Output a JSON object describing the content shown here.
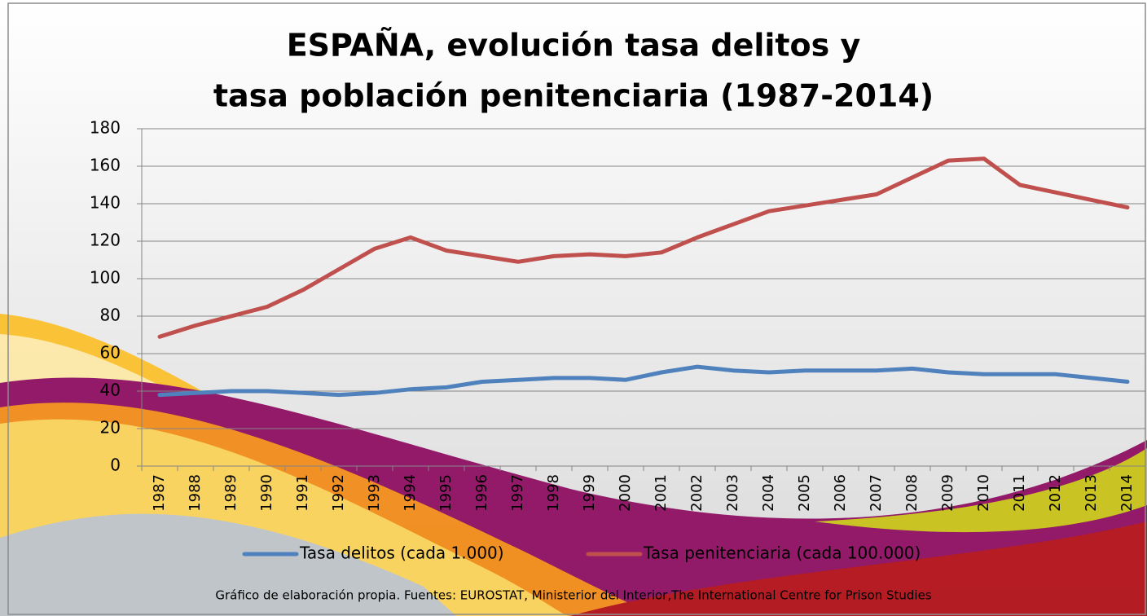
{
  "chart_data": {
    "type": "line",
    "title": [
      "ESPAÑA, evolución tasa delitos y",
      "tasa población penitenciaria (1987-2014)"
    ],
    "categories": [
      "1987",
      "1988",
      "1989",
      "1990",
      "1991",
      "1992",
      "1993",
      "1994",
      "1995",
      "1996",
      "1997",
      "1998",
      "1999",
      "2000",
      "2001",
      "2002",
      "2003",
      "2004",
      "2005",
      "2006",
      "2007",
      "2008",
      "2009",
      "2010",
      "2011",
      "2012",
      "2013",
      "2014"
    ],
    "series": [
      {
        "name": "Tasa delitos (cada 1.000)",
        "color": "#4f81bd",
        "values": [
          38,
          39,
          40,
          40,
          39,
          38,
          39,
          41,
          42,
          45,
          46,
          47,
          47,
          46,
          50,
          53,
          51,
          50,
          51,
          51,
          51,
          52,
          50,
          49,
          49,
          49,
          47,
          45
        ]
      },
      {
        "name": "Tasa penitenciaria (cada 100.000)",
        "color": "#c0504d",
        "values": [
          69,
          75,
          80,
          85,
          94,
          105,
          116,
          122,
          115,
          112,
          109,
          112,
          113,
          112,
          114,
          122,
          129,
          136,
          139,
          142,
          145,
          154,
          163,
          164,
          150,
          146,
          142,
          138
        ]
      }
    ],
    "ylim": [
      0,
      180
    ],
    "yticks": [
      0,
      20,
      40,
      60,
      80,
      100,
      120,
      140,
      160,
      180
    ],
    "grid": true,
    "legend": "bottom",
    "note": "Gráfico de elaboración propia. Fuentes: EUROSTAT, Ministerior del Interior,The International Centre for Prison Studies"
  }
}
